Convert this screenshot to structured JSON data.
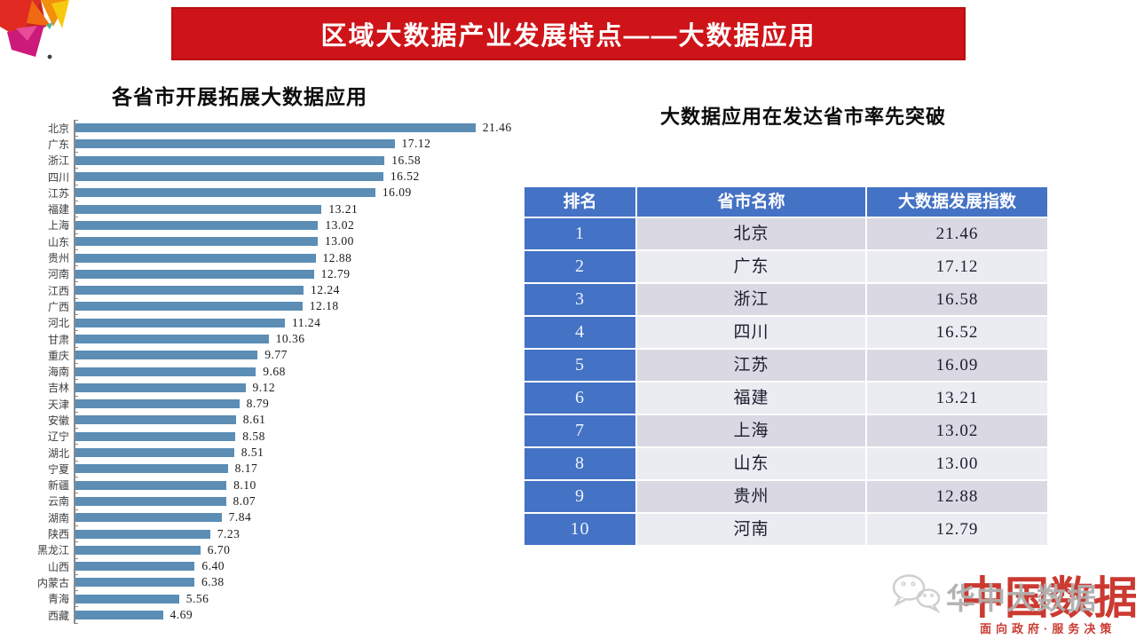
{
  "banner": {
    "title": "区域大数据产业发展特点——大数据应用"
  },
  "left_chart": {
    "title": "各省市开展拓展大数据应用"
  },
  "right_table": {
    "title": "大数据应用在发达省市率先突破",
    "headers": [
      "排名",
      "省市名称",
      "大数据发展指数"
    ],
    "rows": [
      [
        "1",
        "北京",
        "21.46"
      ],
      [
        "2",
        "广东",
        "17.12"
      ],
      [
        "3",
        "浙江",
        "16.58"
      ],
      [
        "4",
        "四川",
        "16.52"
      ],
      [
        "5",
        "江苏",
        "16.09"
      ],
      [
        "6",
        "福建",
        "13.21"
      ],
      [
        "7",
        "上海",
        "13.02"
      ],
      [
        "8",
        "山东",
        "13.00"
      ],
      [
        "9",
        "贵州",
        "12.88"
      ],
      [
        "10",
        "河南",
        "12.79"
      ]
    ]
  },
  "watermark": {
    "icon": "wechat-icon",
    "account_text": "华中大数据",
    "brand_text": "中国数据",
    "slogan": "面向政府·服务决策"
  },
  "colors": {
    "banner_red": "#ce1418",
    "bar_blue": "#5b8db5",
    "table_blue": "#4472c4",
    "row_dark": "#d9d8e3",
    "row_light": "#ebebf2",
    "brand_red": "#cb3a31"
  },
  "chart_data": [
    {
      "type": "bar",
      "orientation": "horizontal",
      "title": "各省市开展拓展大数据应用",
      "categories": [
        "北京",
        "广东",
        "浙江",
        "四川",
        "江苏",
        "福建",
        "上海",
        "山东",
        "贵州",
        "河南",
        "江西",
        "广西",
        "河北",
        "甘肃",
        "重庆",
        "海南",
        "吉林",
        "天津",
        "安徽",
        "辽宁",
        "湖北",
        "宁夏",
        "新疆",
        "云南",
        "湖南",
        "陕西",
        "黑龙江",
        "山西",
        "内蒙古",
        "青海",
        "西藏"
      ],
      "values": [
        21.46,
        17.12,
        16.58,
        16.52,
        16.09,
        13.21,
        13.02,
        13.0,
        12.88,
        12.79,
        12.24,
        12.18,
        11.24,
        10.36,
        9.77,
        9.68,
        9.12,
        8.79,
        8.61,
        8.58,
        8.51,
        8.17,
        8.1,
        8.07,
        7.84,
        7.23,
        6.7,
        6.4,
        6.38,
        5.56,
        4.69
      ],
      "value_label_decimals": 2,
      "xlim": [
        0,
        22
      ],
      "legend": "none",
      "grid": "off",
      "bar_color": "#5b8db5"
    },
    {
      "type": "table",
      "title": "大数据应用在发达省市率先突破",
      "columns": [
        "排名",
        "省市名称",
        "大数据发展指数"
      ],
      "rows": [
        [
          1,
          "北京",
          21.46
        ],
        [
          2,
          "广东",
          17.12
        ],
        [
          3,
          "浙江",
          16.58
        ],
        [
          4,
          "四川",
          16.52
        ],
        [
          5,
          "江苏",
          16.09
        ],
        [
          6,
          "福建",
          13.21
        ],
        [
          7,
          "上海",
          13.02
        ],
        [
          8,
          "山东",
          13.0
        ],
        [
          9,
          "贵州",
          12.88
        ],
        [
          10,
          "河南",
          12.79
        ]
      ]
    }
  ]
}
